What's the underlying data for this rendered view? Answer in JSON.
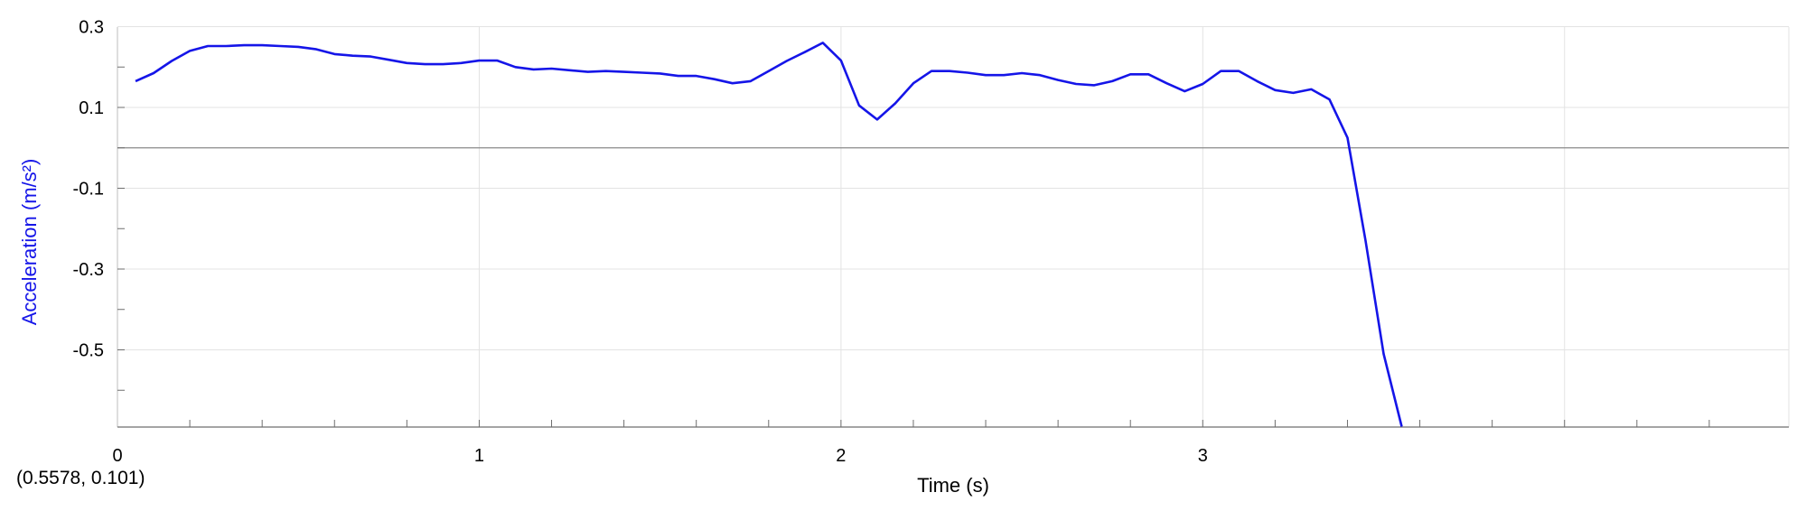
{
  "chart_data": {
    "type": "line",
    "xlabel": "Time (s)",
    "ylabel": "Acceleration (m/s²)",
    "xlim": [
      0,
      3.6
    ],
    "ylim": [
      -0.7,
      0.3
    ],
    "x_ticks": [
      0,
      1,
      2,
      3
    ],
    "y_ticks": [
      0.3,
      0.1,
      -0.1,
      -0.3,
      -0.5
    ],
    "grid": true,
    "zero_line": true,
    "legend": "none",
    "series": [
      {
        "color": "#1515e8",
        "x": [
          0.05,
          0.1,
          0.15,
          0.2,
          0.25,
          0.3,
          0.35,
          0.4,
          0.45,
          0.5,
          0.55,
          0.6,
          0.65,
          0.7,
          0.75,
          0.8,
          0.85,
          0.9,
          0.95,
          1.0,
          1.05,
          1.1,
          1.15,
          1.2,
          1.25,
          1.3,
          1.35,
          1.4,
          1.45,
          1.5,
          1.55,
          1.6,
          1.65,
          1.7,
          1.75,
          1.8,
          1.85,
          1.9,
          1.95,
          2.0,
          2.05,
          2.1,
          2.15,
          2.2,
          2.25,
          2.3,
          2.35,
          2.4,
          2.45,
          2.5,
          2.55,
          2.6,
          2.65,
          2.7,
          2.75,
          2.8,
          2.85,
          2.9,
          2.95,
          3.0,
          3.05,
          3.1,
          3.15,
          3.2,
          3.25,
          3.3,
          3.35,
          3.4,
          3.45,
          3.5,
          3.55
        ],
        "y": [
          0.165,
          0.185,
          0.215,
          0.24,
          0.252,
          0.252,
          0.254,
          0.254,
          0.252,
          0.25,
          0.244,
          0.232,
          0.228,
          0.226,
          0.218,
          0.21,
          0.207,
          0.207,
          0.21,
          0.216,
          0.216,
          0.2,
          0.194,
          0.196,
          0.192,
          0.188,
          0.19,
          0.188,
          0.186,
          0.184,
          0.178,
          0.178,
          0.17,
          0.16,
          0.165,
          0.19,
          0.215,
          0.237,
          0.26,
          0.216,
          0.105,
          0.07,
          0.11,
          0.16,
          0.19,
          0.19,
          0.186,
          0.18,
          0.18,
          0.185,
          0.18,
          0.168,
          0.158,
          0.155,
          0.165,
          0.182,
          0.182,
          0.16,
          0.14,
          0.158,
          0.19,
          0.19,
          0.165,
          0.143,
          0.136,
          0.145,
          0.12,
          0.025,
          -0.23,
          -0.51,
          -0.69
        ]
      }
    ]
  },
  "readout": "(0.5578, 0.101)"
}
